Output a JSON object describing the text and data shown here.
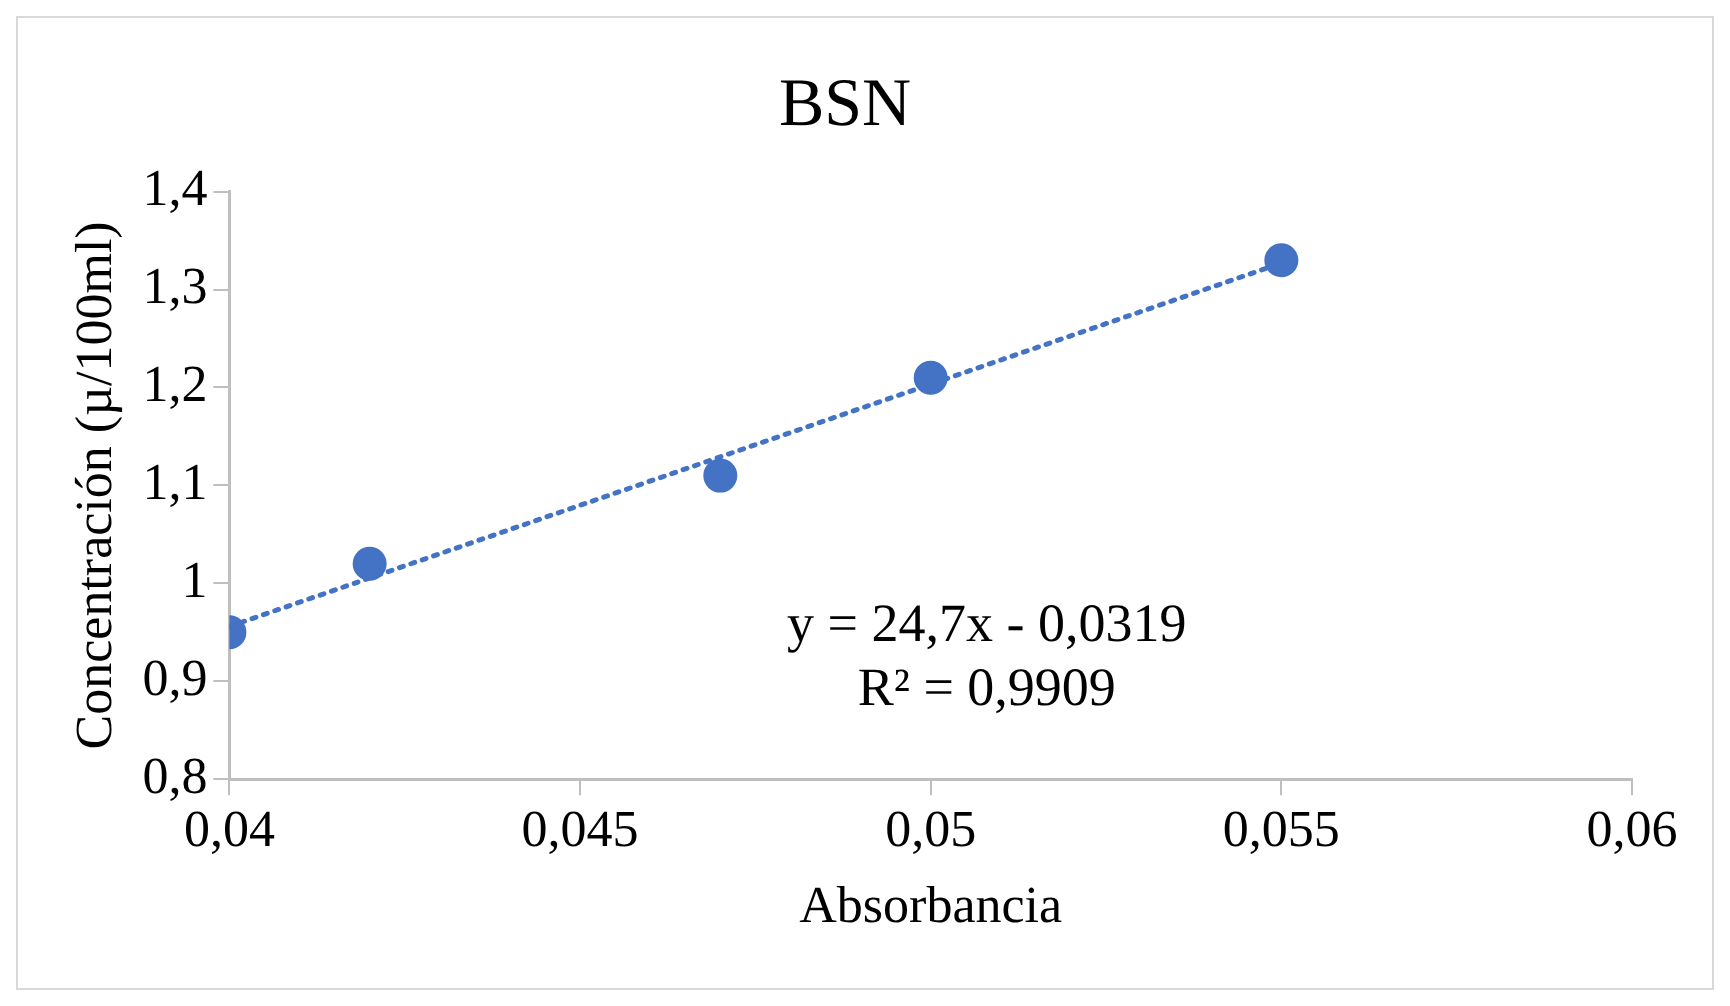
{
  "chart_data": {
    "type": "scatter",
    "title": "BSN",
    "xlabel": "Absorbancia",
    "ylabel": "Concentración (µ/100ml)",
    "xlim": [
      0.04,
      0.06
    ],
    "xticks": [
      {
        "value": 0.04,
        "label": "0,04"
      },
      {
        "value": 0.045,
        "label": "0,045"
      },
      {
        "value": 0.05,
        "label": "0,05"
      },
      {
        "value": 0.055,
        "label": "0,055"
      },
      {
        "value": 0.06,
        "label": "0,06"
      }
    ],
    "ylim": [
      0.8,
      1.4
    ],
    "yticks": [
      {
        "value": 0.8,
        "label": "0,8"
      },
      {
        "value": 0.9,
        "label": "0,9"
      },
      1,
      {
        "value": 1.1,
        "label": "1,1"
      },
      {
        "value": 1.2,
        "label": "1,2"
      },
      {
        "value": 1.3,
        "label": "1,3"
      },
      {
        "value": 1.4,
        "label": "1,4"
      }
    ],
    "x": [
      0.04,
      0.042,
      0.047,
      0.05,
      0.055
    ],
    "series": [
      {
        "type": "scatter",
        "color": "#4472c4",
        "values": [
          0.95,
          1.02,
          1.11,
          1.21,
          1.33
        ],
        "marker": "circle"
      },
      {
        "type": "line",
        "color": "#4472c4",
        "x": [
          0.04,
          0.055
        ],
        "values": [
          0.956,
          1.327
        ],
        "line_style": "dotted",
        "marker": "none"
      }
    ],
    "annotations": [
      "y = 24,7x - 0,0319",
      "R² = 0,9909"
    ],
    "grid": false,
    "legend": false
  }
}
